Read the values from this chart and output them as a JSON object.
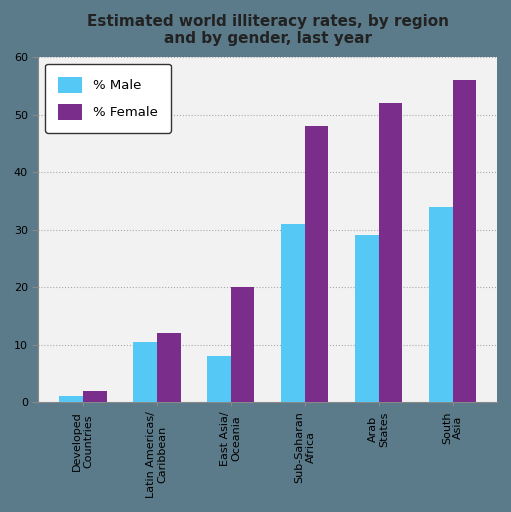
{
  "title": "Estimated world illiteracy rates, by region\nand by gender, last year",
  "categories": [
    "Developed\nCountries",
    "Latin Americas/\nCaribbean",
    "East Asia/\nOceania",
    "Sub-Saharan\nAfrica",
    "Arab\nStates",
    "South\nAsia"
  ],
  "male_values": [
    1,
    10.5,
    8,
    31,
    29,
    34
  ],
  "female_values": [
    2,
    12,
    20,
    48,
    52,
    56
  ],
  "male_color": "#55C8F5",
  "female_color": "#7B2D8B",
  "ylim": [
    0,
    60
  ],
  "yticks": [
    0,
    10,
    20,
    30,
    40,
    50,
    60
  ],
  "legend_male": "% Male",
  "legend_female": "% Female",
  "figure_bg_color": "#5B7B8A",
  "plot_bg_color": "#F2F2F2",
  "title_fontsize": 11,
  "tick_fontsize": 8,
  "bar_width": 0.32
}
